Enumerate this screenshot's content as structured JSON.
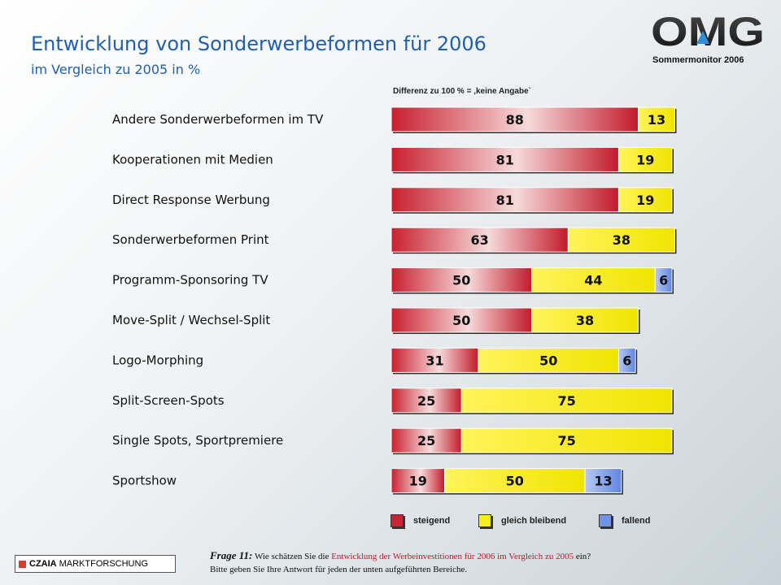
{
  "header": {
    "title": "Entwicklung von Sonderwerbeformen für 2006",
    "subtitle": "im Vergleich zu 2005 in %",
    "logo_text": "OMG",
    "survey": "Sommermonitor  2006"
  },
  "note": "Differenz zu 100 % = ‚keine Angabe`",
  "colors": {
    "steigend": "#cc2233",
    "gleich": "#f4ef1a",
    "fallend": "#6f93e8"
  },
  "chart_data": {
    "type": "bar",
    "orientation": "horizontal",
    "stacked": true,
    "categories": [
      "Andere Sonderwerbeformen im TV",
      "Kooperationen mit Medien",
      "Direct Response Werbung",
      "Sonderwerbeformen Print",
      "Programm-Sponsoring TV",
      "Move-Split / Wechsel-Split",
      "Logo-Morphing",
      "Split-Screen-Spots",
      "Single Spots, Sportpremiere",
      "Sportshow"
    ],
    "series": [
      {
        "name": "steigend",
        "values": [
          88,
          81,
          81,
          63,
          50,
          50,
          31,
          25,
          25,
          19
        ]
      },
      {
        "name": "gleich bleibend",
        "values": [
          13,
          19,
          19,
          38,
          44,
          38,
          50,
          75,
          75,
          50
        ]
      },
      {
        "name": "fallend",
        "values": [
          0,
          0,
          0,
          0,
          6,
          0,
          6,
          0,
          0,
          13
        ]
      }
    ],
    "xlim": [
      0,
      100
    ],
    "legend": "bottom"
  },
  "legend": {
    "steigend": "steigend",
    "gleich": "gleich bleibend",
    "fallend": "fallend"
  },
  "footer": {
    "brand_bold": "CZAIA",
    "brand_rest": "MARKTFORSCHUNG",
    "question_label": "Frage 11:",
    "question_pre": "Wie schätzen Sie die",
    "question_highlight": "Entwicklung der Werbeinvestitionen für 2006 im Vergleich zu 2005",
    "question_post": "ein?",
    "question_line2": "Bitte geben Sie Ihre Antwort für jeden der unten aufgeführten Bereiche."
  }
}
